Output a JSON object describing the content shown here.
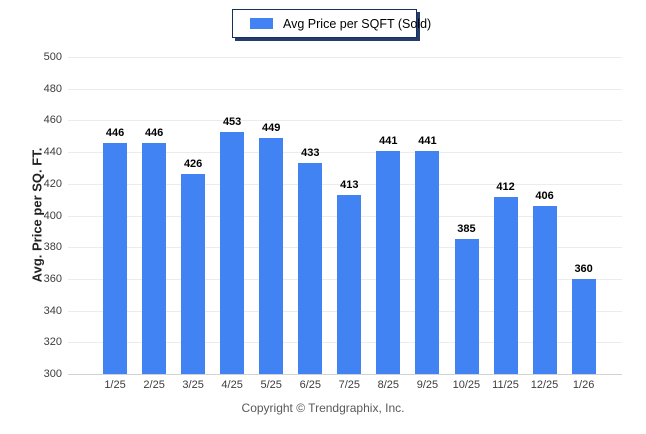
{
  "chart_data": {
    "type": "bar",
    "title": "",
    "legend_label": "Avg Price per SQFT (Sold)",
    "legend_position": "top-center",
    "categories": [
      "1/25",
      "2/25",
      "3/25",
      "4/25",
      "5/25",
      "6/25",
      "7/25",
      "8/25",
      "9/25",
      "10/25",
      "11/25",
      "12/25",
      "1/26"
    ],
    "values": [
      446,
      446,
      426,
      453,
      449,
      433,
      413,
      441,
      441,
      385,
      412,
      406,
      360
    ],
    "xlabel": "",
    "ylabel": "Avg. Price per SQ. FT.",
    "ylim": [
      300,
      500
    ],
    "ytick_step": 20,
    "grid": true,
    "value_labels": true
  },
  "colors": {
    "bar": "#4183F2",
    "grid": "#ECECEC",
    "axis_line": "#D2D2D2",
    "tick_label": "#3C3C3C",
    "value_label": "#000000",
    "legend_border": "#16325C",
    "legend_shadow": "#263C6B",
    "footer": "#595959"
  },
  "footer": {
    "text": "Copyright © Trendgraphix, Inc."
  }
}
